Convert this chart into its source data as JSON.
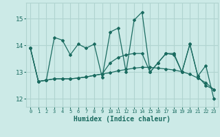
{
  "xlabel": "Humidex (Indice chaleur)",
  "xlim": [
    -0.5,
    23.5
  ],
  "ylim": [
    11.7,
    15.6
  ],
  "yticks": [
    12,
    13,
    14,
    15
  ],
  "xtick_labels": [
    "0",
    "1",
    "2",
    "3",
    "4",
    "5",
    "6",
    "7",
    "8",
    "9",
    "10",
    "11",
    "12",
    "13",
    "14",
    "15",
    "16",
    "17",
    "18",
    "19",
    "20",
    "21",
    "22",
    "23"
  ],
  "background_color": "#cceae7",
  "grid_color": "#b0d4d0",
  "line_color": "#1a6b60",
  "series": [
    [
      13.9,
      12.65,
      12.7,
      14.3,
      14.2,
      13.65,
      14.05,
      13.9,
      14.05,
      12.8,
      14.5,
      14.65,
      13.0,
      14.95,
      15.25,
      13.0,
      13.35,
      13.7,
      13.7,
      13.0,
      14.05,
      12.85,
      13.25,
      12.0
    ],
    [
      13.9,
      12.65,
      12.7,
      12.75,
      12.75,
      12.75,
      12.78,
      12.82,
      12.88,
      12.93,
      12.98,
      13.05,
      13.1,
      13.15,
      13.18,
      13.18,
      13.15,
      13.12,
      13.08,
      13.02,
      12.92,
      12.78,
      12.6,
      12.35
    ],
    [
      13.9,
      12.65,
      12.7,
      12.75,
      12.75,
      12.75,
      12.78,
      12.82,
      12.88,
      12.93,
      13.35,
      13.55,
      13.65,
      13.7,
      13.7,
      13.0,
      13.35,
      13.7,
      13.65,
      13.0,
      14.05,
      12.85,
      12.5,
      12.35
    ]
  ]
}
